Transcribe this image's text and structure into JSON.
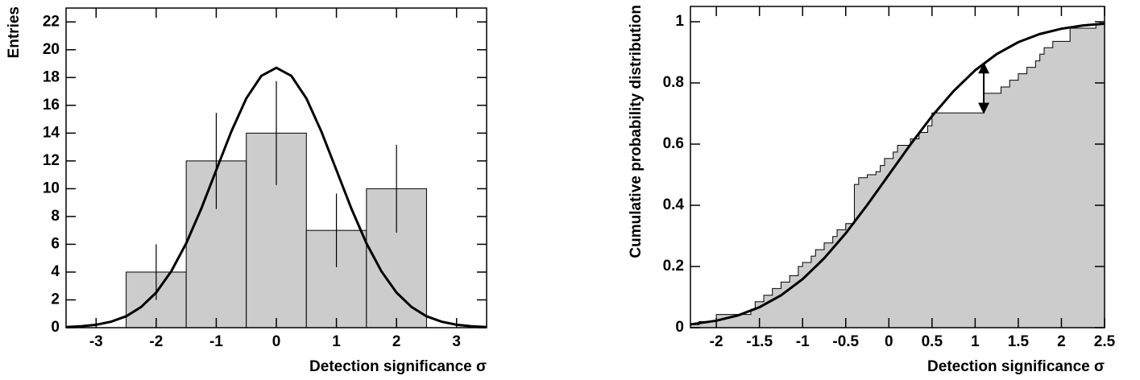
{
  "chart_data": [
    {
      "type": "histogram",
      "ylabel": "Entries",
      "xlabel": "Detection significance σ",
      "bins": [
        -2.5,
        -1.5,
        -0.5,
        0.5,
        1.5,
        2.5
      ],
      "values": [
        4,
        12,
        14,
        7,
        10
      ],
      "errors": [
        2,
        3.46,
        3.74,
        2.65,
        3.16
      ],
      "color": "#cccccc",
      "curve": {
        "x": [
          -3.5,
          -3.25,
          -3,
          -2.75,
          -2.5,
          -2.25,
          -2,
          -1.75,
          -1.5,
          -1.25,
          -1,
          -0.75,
          -0.5,
          -0.25,
          0,
          0.25,
          0.5,
          0.75,
          1,
          1.25,
          1.5,
          1.75,
          2,
          2.25,
          2.5,
          2.75,
          3,
          3.25,
          3.5
        ],
        "values": [
          0.04,
          0.1,
          0.21,
          0.43,
          0.82,
          1.49,
          2.53,
          4.05,
          6.07,
          8.56,
          11.34,
          14.11,
          16.5,
          18.12,
          18.7,
          18.12,
          16.5,
          14.11,
          11.34,
          8.56,
          6.07,
          4.05,
          2.53,
          1.49,
          0.82,
          0.43,
          0.21,
          0.1,
          0.04
        ]
      },
      "xlim": [
        -3.5,
        3.5
      ],
      "xticks": [
        -3,
        -2,
        -1,
        0,
        1,
        2,
        3
      ],
      "ylim": [
        0,
        23
      ],
      "yticks": [
        0,
        2,
        4,
        6,
        8,
        10,
        12,
        14,
        16,
        18,
        20,
        22
      ]
    },
    {
      "type": "step",
      "ylabel": "Cumulative probability distribution",
      "xlabel": "Detection significance σ",
      "x": [
        -2.3,
        -2.2,
        -2.0,
        -1.6,
        -1.55,
        -1.45,
        -1.35,
        -1.25,
        -1.15,
        -1.05,
        -1.0,
        -0.9,
        -0.85,
        -0.75,
        -0.65,
        -0.6,
        -0.5,
        -0.4,
        -0.35,
        -0.25,
        -0.15,
        -0.1,
        -0.05,
        0.05,
        0.1,
        0.25,
        0.35,
        0.45,
        0.5,
        1.1,
        1.3,
        1.4,
        1.5,
        1.6,
        1.7,
        1.75,
        1.8,
        1.9,
        2.1,
        2.4,
        2.45
      ],
      "values": [
        0.01,
        0.02,
        0.043,
        0.06,
        0.085,
        0.106,
        0.128,
        0.149,
        0.17,
        0.2,
        0.213,
        0.234,
        0.255,
        0.277,
        0.298,
        0.32,
        0.34,
        0.468,
        0.49,
        0.5,
        0.51,
        0.53,
        0.553,
        0.574,
        0.596,
        0.617,
        0.638,
        0.66,
        0.702,
        0.766,
        0.787,
        0.809,
        0.83,
        0.851,
        0.872,
        0.894,
        0.915,
        0.936,
        0.979,
        0.99,
        1.0
      ],
      "color": "#cccccc",
      "curve": {
        "x": [
          -2.3,
          -2,
          -1.75,
          -1.5,
          -1.25,
          -1,
          -0.75,
          -0.5,
          -0.25,
          0,
          0.25,
          0.5,
          0.75,
          1,
          1.25,
          1.5,
          1.75,
          2,
          2.25,
          2.5
        ],
        "values": [
          0.0107,
          0.0228,
          0.0401,
          0.0668,
          0.1056,
          0.1587,
          0.2266,
          0.3085,
          0.4013,
          0.5,
          0.5987,
          0.6915,
          0.7734,
          0.8413,
          0.8944,
          0.9332,
          0.9599,
          0.9772,
          0.9878,
          0.9938
        ]
      },
      "arrow": {
        "x": 1.1,
        "y": [
          0.702,
          0.864
        ]
      },
      "xlim": [
        -2.3,
        2.5
      ],
      "xticks": [
        -2,
        -1.5,
        -1,
        -0.5,
        0,
        0.5,
        1,
        1.5,
        2,
        2.5
      ],
      "ylim": [
        0,
        1.05
      ],
      "yticks": [
        0,
        0.2,
        0.4,
        0.6,
        0.8,
        1
      ]
    }
  ]
}
